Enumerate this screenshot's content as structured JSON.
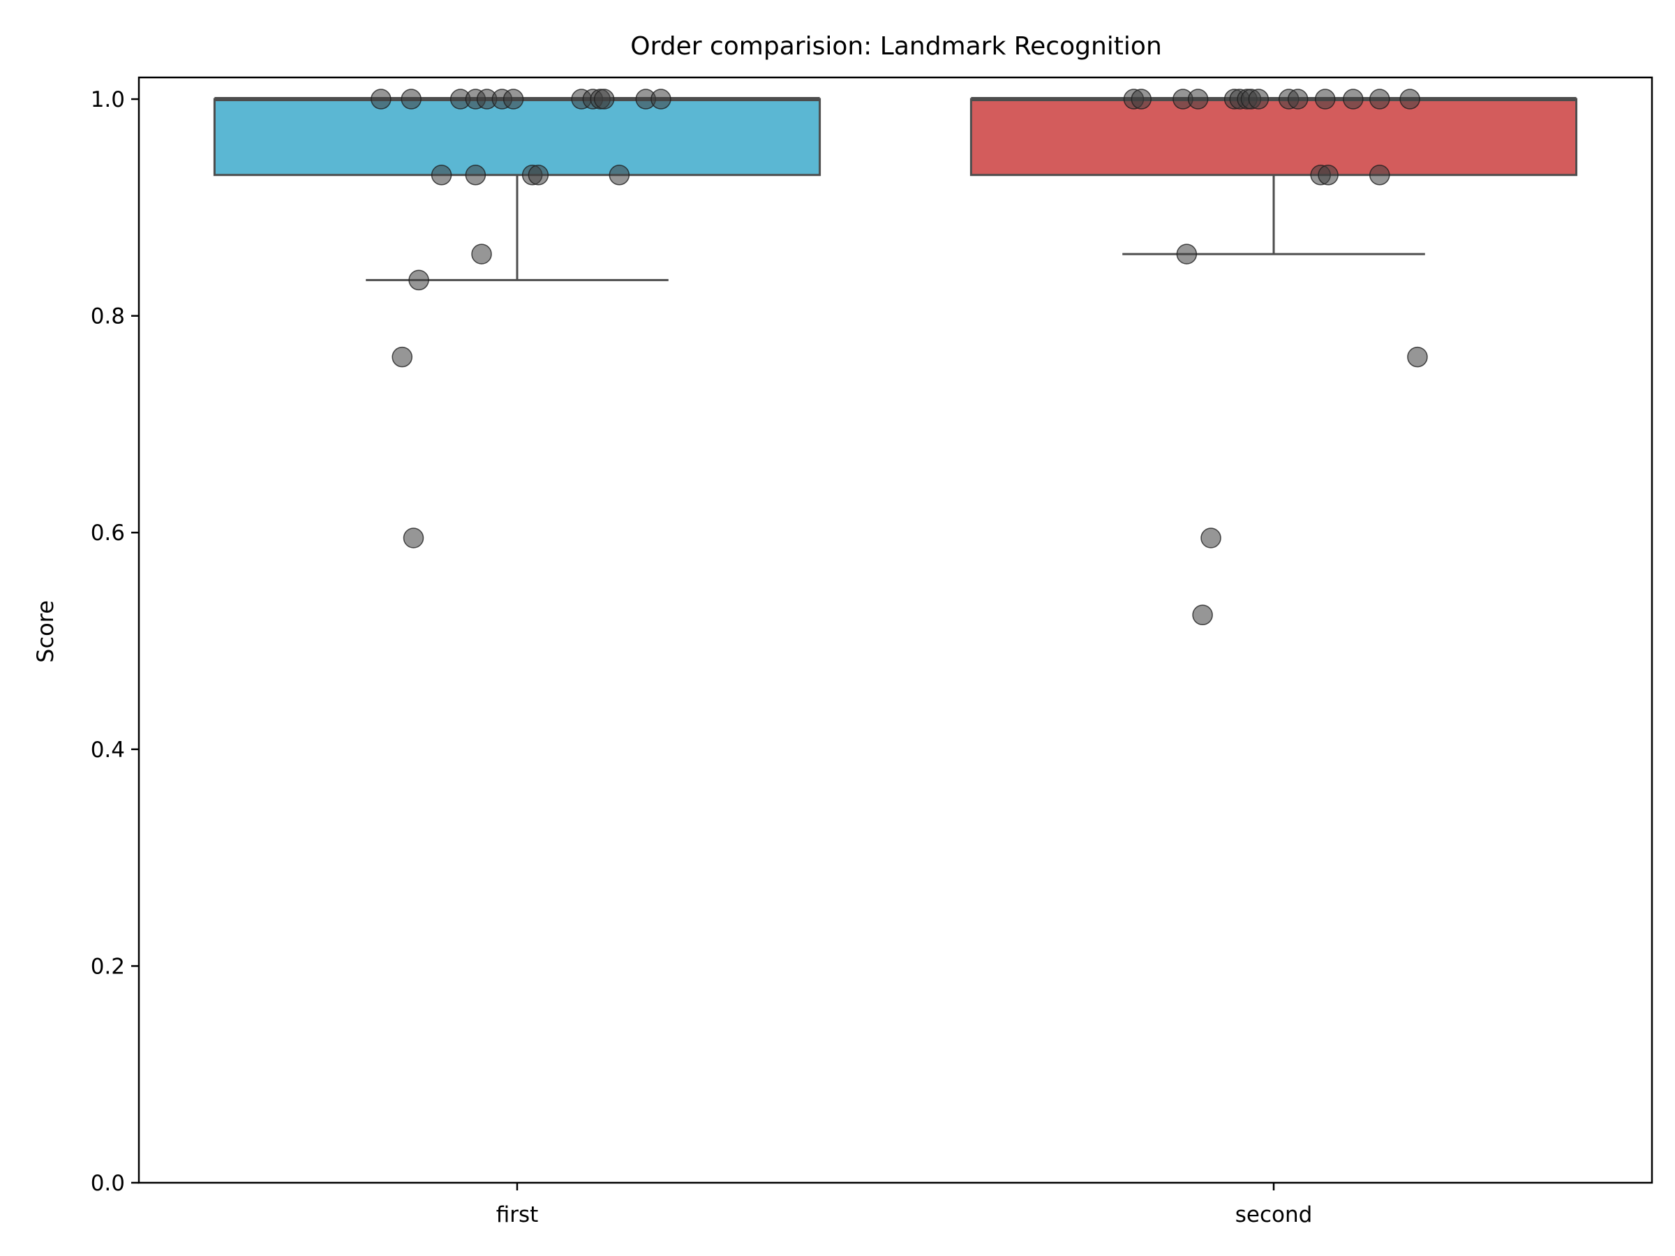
{
  "chart_data": {
    "type": "box",
    "title": "Order comparision: Landmark Recognition",
    "xlabel": "",
    "ylabel": "Score",
    "ylim": [
      0,
      1.02
    ],
    "yticks": [
      0.0,
      0.2,
      0.4,
      0.6,
      0.8,
      1.0
    ],
    "ytick_labels": [
      "0.0",
      "0.2",
      "0.4",
      "0.6",
      "0.8",
      "1.0"
    ],
    "categories": [
      "first",
      "second"
    ],
    "boxes": [
      {
        "name": "first",
        "color": "#5bb7d3",
        "q1": 0.93,
        "median": 1.0,
        "q3": 1.0,
        "whisker_low": 0.833,
        "whisker_high": 1.0,
        "points": [
          {
            "x": -0.18,
            "y": 1.0
          },
          {
            "x": -0.14,
            "y": 1.0
          },
          {
            "x": -0.075,
            "y": 1.0
          },
          {
            "x": -0.055,
            "y": 1.0
          },
          {
            "x": -0.04,
            "y": 1.0
          },
          {
            "x": -0.02,
            "y": 1.0
          },
          {
            "x": -0.005,
            "y": 1.0
          },
          {
            "x": 0.085,
            "y": 1.0
          },
          {
            "x": 0.1,
            "y": 1.0
          },
          {
            "x": 0.11,
            "y": 1.0
          },
          {
            "x": 0.115,
            "y": 1.0
          },
          {
            "x": 0.17,
            "y": 1.0
          },
          {
            "x": 0.19,
            "y": 1.0
          },
          {
            "x": -0.1,
            "y": 0.93
          },
          {
            "x": -0.055,
            "y": 0.93
          },
          {
            "x": 0.02,
            "y": 0.93
          },
          {
            "x": 0.028,
            "y": 0.93
          },
          {
            "x": 0.135,
            "y": 0.93
          },
          {
            "x": -0.047,
            "y": 0.857
          },
          {
            "x": -0.13,
            "y": 0.833
          },
          {
            "x": -0.152,
            "y": 0.762
          },
          {
            "x": -0.137,
            "y": 0.595
          }
        ]
      },
      {
        "name": "second",
        "color": "#d35c5c",
        "q1": 0.93,
        "median": 1.0,
        "q3": 1.0,
        "whisker_low": 0.857,
        "whisker_high": 1.0,
        "points": [
          {
            "x": -0.185,
            "y": 1.0
          },
          {
            "x": -0.175,
            "y": 1.0
          },
          {
            "x": -0.12,
            "y": 1.0
          },
          {
            "x": -0.1,
            "y": 1.0
          },
          {
            "x": -0.052,
            "y": 1.0
          },
          {
            "x": -0.045,
            "y": 1.0
          },
          {
            "x": -0.035,
            "y": 1.0
          },
          {
            "x": -0.03,
            "y": 1.0
          },
          {
            "x": -0.02,
            "y": 1.0
          },
          {
            "x": 0.02,
            "y": 1.0
          },
          {
            "x": 0.032,
            "y": 1.0
          },
          {
            "x": 0.068,
            "y": 1.0
          },
          {
            "x": 0.105,
            "y": 1.0
          },
          {
            "x": 0.14,
            "y": 1.0
          },
          {
            "x": 0.18,
            "y": 1.0
          },
          {
            "x": 0.062,
            "y": 0.93
          },
          {
            "x": 0.072,
            "y": 0.93
          },
          {
            "x": 0.14,
            "y": 0.93
          },
          {
            "x": -0.115,
            "y": 0.857
          },
          {
            "x": 0.19,
            "y": 0.762
          },
          {
            "x": -0.083,
            "y": 0.595
          },
          {
            "x": -0.094,
            "y": 0.524
          }
        ]
      }
    ]
  }
}
